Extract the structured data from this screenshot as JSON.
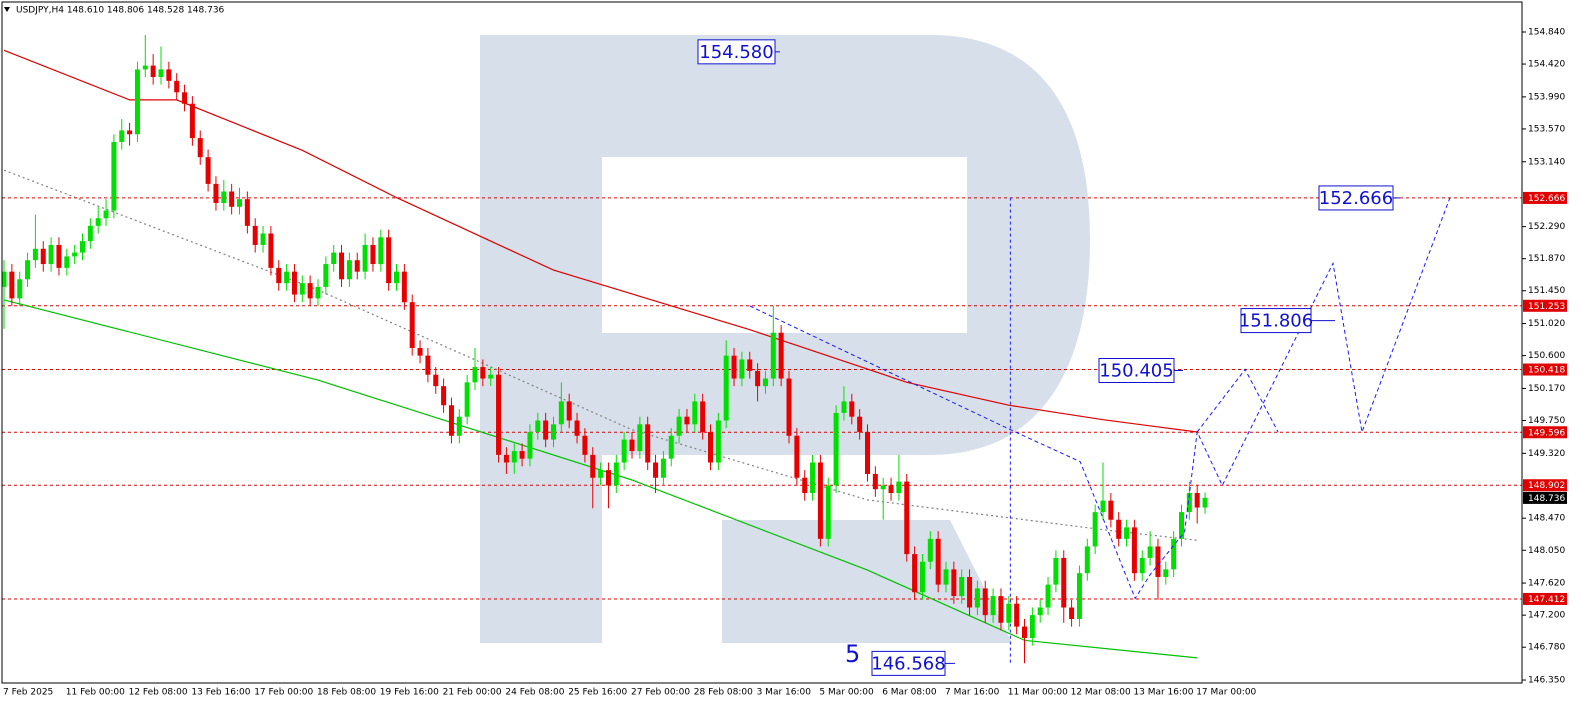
{
  "chart_data": {
    "type": "candlestick",
    "title": "USDJPY,H4  148.610 148.806 148.528 148.736",
    "categories": [
      "7 Feb 2025",
      null,
      null,
      null,
      null,
      null,
      null,
      null,
      "11 Feb 00:00",
      null,
      null,
      null,
      null,
      null,
      null,
      null,
      "12 Feb 08:00",
      null,
      null,
      null,
      null,
      null,
      null,
      null,
      "13 Feb 16:00",
      null,
      null,
      null,
      null,
      null,
      null,
      null,
      "17 Feb 00:00",
      null,
      null,
      null,
      null,
      null,
      null,
      null,
      "18 Feb 08:00",
      null,
      null,
      null,
      null,
      null,
      null,
      null,
      "19 Feb 16:00",
      null,
      null,
      null,
      null,
      null,
      null,
      null,
      "21 Feb 00:00",
      null,
      null,
      null,
      null,
      null,
      null,
      null,
      "24 Feb 08:00",
      null,
      null,
      null,
      null,
      null,
      null,
      null,
      "25 Feb 16:00",
      null,
      null,
      null,
      null,
      null,
      null,
      null,
      "27 Feb 00:00",
      null,
      null,
      null,
      null,
      null,
      null,
      null,
      "28 Feb 08:00",
      null,
      null,
      null,
      null,
      null,
      null,
      null,
      "3 Mar 16:00",
      null,
      null,
      null,
      null,
      null,
      null,
      null,
      "5 Mar 00:00",
      null,
      null,
      null,
      null,
      null,
      null,
      null,
      "6 Mar 08:00",
      null,
      null,
      null,
      null,
      null,
      null,
      null,
      "7 Mar 16:00",
      null,
      null,
      null,
      null,
      null,
      null,
      null,
      "11 Mar 00:00",
      null,
      null,
      null,
      null,
      null,
      null,
      null,
      "12 Mar 08:00",
      null,
      null,
      null,
      null,
      null,
      null,
      null,
      "13 Mar 16:00",
      null,
      null,
      null,
      null,
      null,
      null,
      null,
      "17 Mar 00:00",
      null
    ],
    "open": [
      151.5,
      151.7,
      151.35,
      151.6,
      151.85,
      152.0,
      151.8,
      152.05,
      151.75,
      151.9,
      151.95,
      152.1,
      152.3,
      152.4,
      152.5,
      153.4,
      153.55,
      153.5,
      154.35,
      154.4,
      154.25,
      154.35,
      154.2,
      154.05,
      153.9,
      153.45,
      153.2,
      152.85,
      152.6,
      152.75,
      152.55,
      152.65,
      152.3,
      152.05,
      152.2,
      151.75,
      151.55,
      151.7,
      151.4,
      151.55,
      151.35,
      151.5,
      151.8,
      151.95,
      151.6,
      151.85,
      151.7,
      152.05,
      151.8,
      152.15,
      151.55,
      151.7,
      151.3,
      150.7,
      150.6,
      150.35,
      150.2,
      149.95,
      149.55,
      149.8,
      150.25,
      150.45,
      150.3,
      150.35,
      149.3,
      149.2,
      149.35,
      149.25,
      149.6,
      149.75,
      149.5,
      149.7,
      150.0,
      149.75,
      149.55,
      149.3,
      149.0,
      149.1,
      148.9,
      149.2,
      149.5,
      149.35,
      149.7,
      149.2,
      149.0,
      149.25,
      149.55,
      149.8,
      149.7,
      150.0,
      149.6,
      149.2,
      149.75,
      150.6,
      150.3,
      150.55,
      150.4,
      150.2,
      150.3,
      150.9,
      150.3,
      149.55,
      149.0,
      148.8,
      149.2,
      148.2,
      148.9,
      149.85,
      150.0,
      149.8,
      149.6,
      149.05,
      148.85,
      148.9,
      148.8,
      148.95,
      148.0,
      147.5,
      147.9,
      148.2,
      147.6,
      147.8,
      147.45,
      147.7,
      147.3,
      147.55,
      147.2,
      147.45,
      147.1,
      147.35,
      147.05,
      146.9,
      147.2,
      147.3,
      147.6,
      147.95,
      147.3,
      147.15,
      147.75,
      148.1,
      148.55,
      148.7,
      148.45,
      148.2,
      148.35,
      147.75,
      147.95,
      148.1,
      147.7,
      147.8,
      148.2,
      148.55,
      148.8,
      148.61
    ],
    "high": [
      151.85,
      151.8,
      151.7,
      151.95,
      152.45,
      152.1,
      152.15,
      152.15,
      152.0,
      152.05,
      152.2,
      152.4,
      152.55,
      152.65,
      153.5,
      153.7,
      153.65,
      154.45,
      154.8,
      154.55,
      154.65,
      154.45,
      154.3,
      154.15,
      154.0,
      153.55,
      153.3,
      152.95,
      152.9,
      152.85,
      152.8,
      152.75,
      152.4,
      152.3,
      152.3,
      151.85,
      151.8,
      151.8,
      151.65,
      151.65,
      151.6,
      151.9,
      152.05,
      152.05,
      151.95,
      151.95,
      152.2,
      152.15,
      152.25,
      152.25,
      151.8,
      151.8,
      151.4,
      150.8,
      150.7,
      150.45,
      150.3,
      150.05,
      149.9,
      150.35,
      150.7,
      150.55,
      150.45,
      150.45,
      149.4,
      149.45,
      149.45,
      149.7,
      149.85,
      149.85,
      149.8,
      150.25,
      150.1,
      149.85,
      149.65,
      149.4,
      149.2,
      149.2,
      149.3,
      149.6,
      149.6,
      149.8,
      149.8,
      149.3,
      149.35,
      149.65,
      149.9,
      149.9,
      150.1,
      150.1,
      149.7,
      149.85,
      150.8,
      150.7,
      150.65,
      150.65,
      150.5,
      150.4,
      151.25,
      151.0,
      150.4,
      149.65,
      149.1,
      149.3,
      149.3,
      149.0,
      149.95,
      150.2,
      150.1,
      149.9,
      149.7,
      149.15,
      149.0,
      149.0,
      149.3,
      149.05,
      148.1,
      148.0,
      148.3,
      148.3,
      147.9,
      147.9,
      147.8,
      147.8,
      147.65,
      147.65,
      147.55,
      147.55,
      147.45,
      147.45,
      147.15,
      147.3,
      147.4,
      147.7,
      148.05,
      148.05,
      147.4,
      147.85,
      148.2,
      148.65,
      149.2,
      148.8,
      148.55,
      148.45,
      148.45,
      148.05,
      148.3,
      148.2,
      147.9,
      148.3,
      148.65,
      148.95,
      148.9,
      148.806
    ],
    "low": [
      150.95,
      151.25,
      151.25,
      151.5,
      151.75,
      151.7,
      151.7,
      151.65,
      151.65,
      151.8,
      151.85,
      152.0,
      152.2,
      152.3,
      152.4,
      153.3,
      153.35,
      153.4,
      154.25,
      154.15,
      154.15,
      154.1,
      153.95,
      153.8,
      153.35,
      153.1,
      152.75,
      152.5,
      152.5,
      152.45,
      152.45,
      152.2,
      151.95,
      151.95,
      151.65,
      151.45,
      151.45,
      151.3,
      151.3,
      151.25,
      151.25,
      151.4,
      151.7,
      151.5,
      151.5,
      151.6,
      151.6,
      151.7,
      151.7,
      151.45,
      151.45,
      151.2,
      150.6,
      150.5,
      150.25,
      150.1,
      149.85,
      149.45,
      149.45,
      149.7,
      150.15,
      150.2,
      150.2,
      149.2,
      149.05,
      149.05,
      149.15,
      149.15,
      149.5,
      149.4,
      149.4,
      149.6,
      149.65,
      149.45,
      149.2,
      148.6,
      148.9,
      148.6,
      148.8,
      149.1,
      149.25,
      149.25,
      149.1,
      148.8,
      148.9,
      149.15,
      149.45,
      149.6,
      149.6,
      149.5,
      149.1,
      149.1,
      149.65,
      150.2,
      150.2,
      150.3,
      150.0,
      150.1,
      150.2,
      150.2,
      149.45,
      148.9,
      148.7,
      148.7,
      148.1,
      148.1,
      148.8,
      149.75,
      149.7,
      149.5,
      148.95,
      148.75,
      148.45,
      148.7,
      148.7,
      147.9,
      147.4,
      147.4,
      147.8,
      147.5,
      147.5,
      147.35,
      147.35,
      147.2,
      147.2,
      147.1,
      147.1,
      147.0,
      147.0,
      146.95,
      146.57,
      146.8,
      147.1,
      147.2,
      147.5,
      147.1,
      147.05,
      147.05,
      147.65,
      148.0,
      148.45,
      148.35,
      148.1,
      148.1,
      147.65,
      147.65,
      147.85,
      147.4,
      147.6,
      147.7,
      148.1,
      148.45,
      148.4,
      148.528
    ],
    "close": [
      151.7,
      151.35,
      151.6,
      151.85,
      152.0,
      151.8,
      152.05,
      151.75,
      151.9,
      151.95,
      152.1,
      152.3,
      152.4,
      152.5,
      153.4,
      153.55,
      153.5,
      154.35,
      154.4,
      154.25,
      154.35,
      154.2,
      154.05,
      153.9,
      153.45,
      153.2,
      152.85,
      152.6,
      152.75,
      152.55,
      152.65,
      152.3,
      152.05,
      152.2,
      151.75,
      151.55,
      151.7,
      151.4,
      151.55,
      151.35,
      151.5,
      151.8,
      151.95,
      151.6,
      151.85,
      151.7,
      152.05,
      151.8,
      152.15,
      151.55,
      151.7,
      151.3,
      150.7,
      150.6,
      150.35,
      150.2,
      149.95,
      149.55,
      149.8,
      150.25,
      150.45,
      150.3,
      150.35,
      149.3,
      149.2,
      149.35,
      149.25,
      149.6,
      149.75,
      149.5,
      149.7,
      150.0,
      149.75,
      149.55,
      149.3,
      149.0,
      149.1,
      148.9,
      149.2,
      149.5,
      149.35,
      149.7,
      149.2,
      149.0,
      149.25,
      149.55,
      149.8,
      149.7,
      150.0,
      149.6,
      149.2,
      149.75,
      150.6,
      150.3,
      150.55,
      150.4,
      150.2,
      150.3,
      150.9,
      150.3,
      149.55,
      149.0,
      148.8,
      149.2,
      148.2,
      148.9,
      149.85,
      150.0,
      149.8,
      149.6,
      149.05,
      148.85,
      148.9,
      148.8,
      148.95,
      148.0,
      147.5,
      147.9,
      148.2,
      147.6,
      147.8,
      147.45,
      147.7,
      147.3,
      147.55,
      147.2,
      147.45,
      147.1,
      147.35,
      147.05,
      146.9,
      147.2,
      147.3,
      147.6,
      147.95,
      147.3,
      147.15,
      147.75,
      148.1,
      148.55,
      148.7,
      148.45,
      148.2,
      148.35,
      147.75,
      147.95,
      148.1,
      147.7,
      147.8,
      148.2,
      148.55,
      148.8,
      148.61,
      148.736
    ],
    "up_color": "#00e000",
    "down_color": "#e80000",
    "ylim": [
      146.311,
      155.233
    ],
    "yticks": [
      {
        "value": 154.84,
        "label": "154.840"
      },
      {
        "value": 154.42,
        "label": "154.420"
      },
      {
        "value": 153.99,
        "label": "153.990"
      },
      {
        "value": 153.57,
        "label": "153.570"
      },
      {
        "value": 153.14,
        "label": "153.140"
      },
      {
        "value": 152.29,
        "label": "152.290"
      },
      {
        "value": 151.87,
        "label": "151.870"
      },
      {
        "value": 151.45,
        "label": "151.450"
      },
      {
        "value": 151.02,
        "label": "151.020"
      },
      {
        "value": 150.6,
        "label": "150.600"
      },
      {
        "value": 150.17,
        "label": "150.170"
      },
      {
        "value": 149.75,
        "label": "149.750"
      },
      {
        "value": 149.32,
        "label": "149.320"
      },
      {
        "value": 148.47,
        "label": "148.470"
      },
      {
        "value": 148.05,
        "label": "148.050"
      },
      {
        "value": 147.62,
        "label": "147.620"
      },
      {
        "value": 147.2,
        "label": "147.200"
      },
      {
        "value": 146.78,
        "label": "146.780"
      },
      {
        "value": 146.35,
        "label": "146.350"
      }
    ],
    "grid": false,
    "levels": [
      152.666,
      151.253,
      150.418,
      149.596,
      148.902,
      147.412
    ],
    "level_color": "#e00000",
    "last_price": 148.736,
    "indicators": [
      {
        "color": "#e00000",
        "style": "solid",
        "x": [
          0,
          16,
          22,
          38,
          50,
          70,
          95,
          115,
          128,
          140,
          152
        ],
        "values": [
          154.6,
          153.95,
          153.95,
          153.29,
          152.67,
          151.72,
          150.94,
          150.25,
          149.95,
          149.76,
          149.6
        ]
      },
      {
        "color": "#00c000",
        "style": "solid",
        "x": [
          0,
          40,
          80,
          110,
          130,
          152
        ],
        "values": [
          151.33,
          150.28,
          148.97,
          147.79,
          146.87,
          146.64
        ]
      },
      {
        "color": "#808080",
        "style": "dotted",
        "x": [
          0,
          40,
          80,
          110,
          130,
          140,
          152
        ],
        "values": [
          153.03,
          151.46,
          149.63,
          148.71,
          148.45,
          148.32,
          148.18
        ]
      }
    ],
    "forecast": {
      "color": "#1a1aff",
      "x": [
        95,
        128.2,
        137.1,
        144.1,
        146,
        150.4,
        152,
        155.2,
        169.3,
        173,
        184.2
      ],
      "values": [
        151.25,
        149.63,
        149.21,
        147.42,
        147.73,
        148.29,
        149.6,
        148.9,
        151.81,
        149.6,
        152.67
      ]
    },
    "forecast_branch": {
      "x": [
        152,
        158.1,
        162.3
      ],
      "values": [
        149.6,
        150.42,
        149.6
      ]
    },
    "range_line": {
      "x": 128.2,
      "values": [
        152.67,
        146.57
      ]
    },
    "annotations": [
      {
        "value": 154.58,
        "label": "154.580"
      },
      152.666,
      151.806,
      150.405,
      146.568
    ],
    "wave_label": "5"
  }
}
